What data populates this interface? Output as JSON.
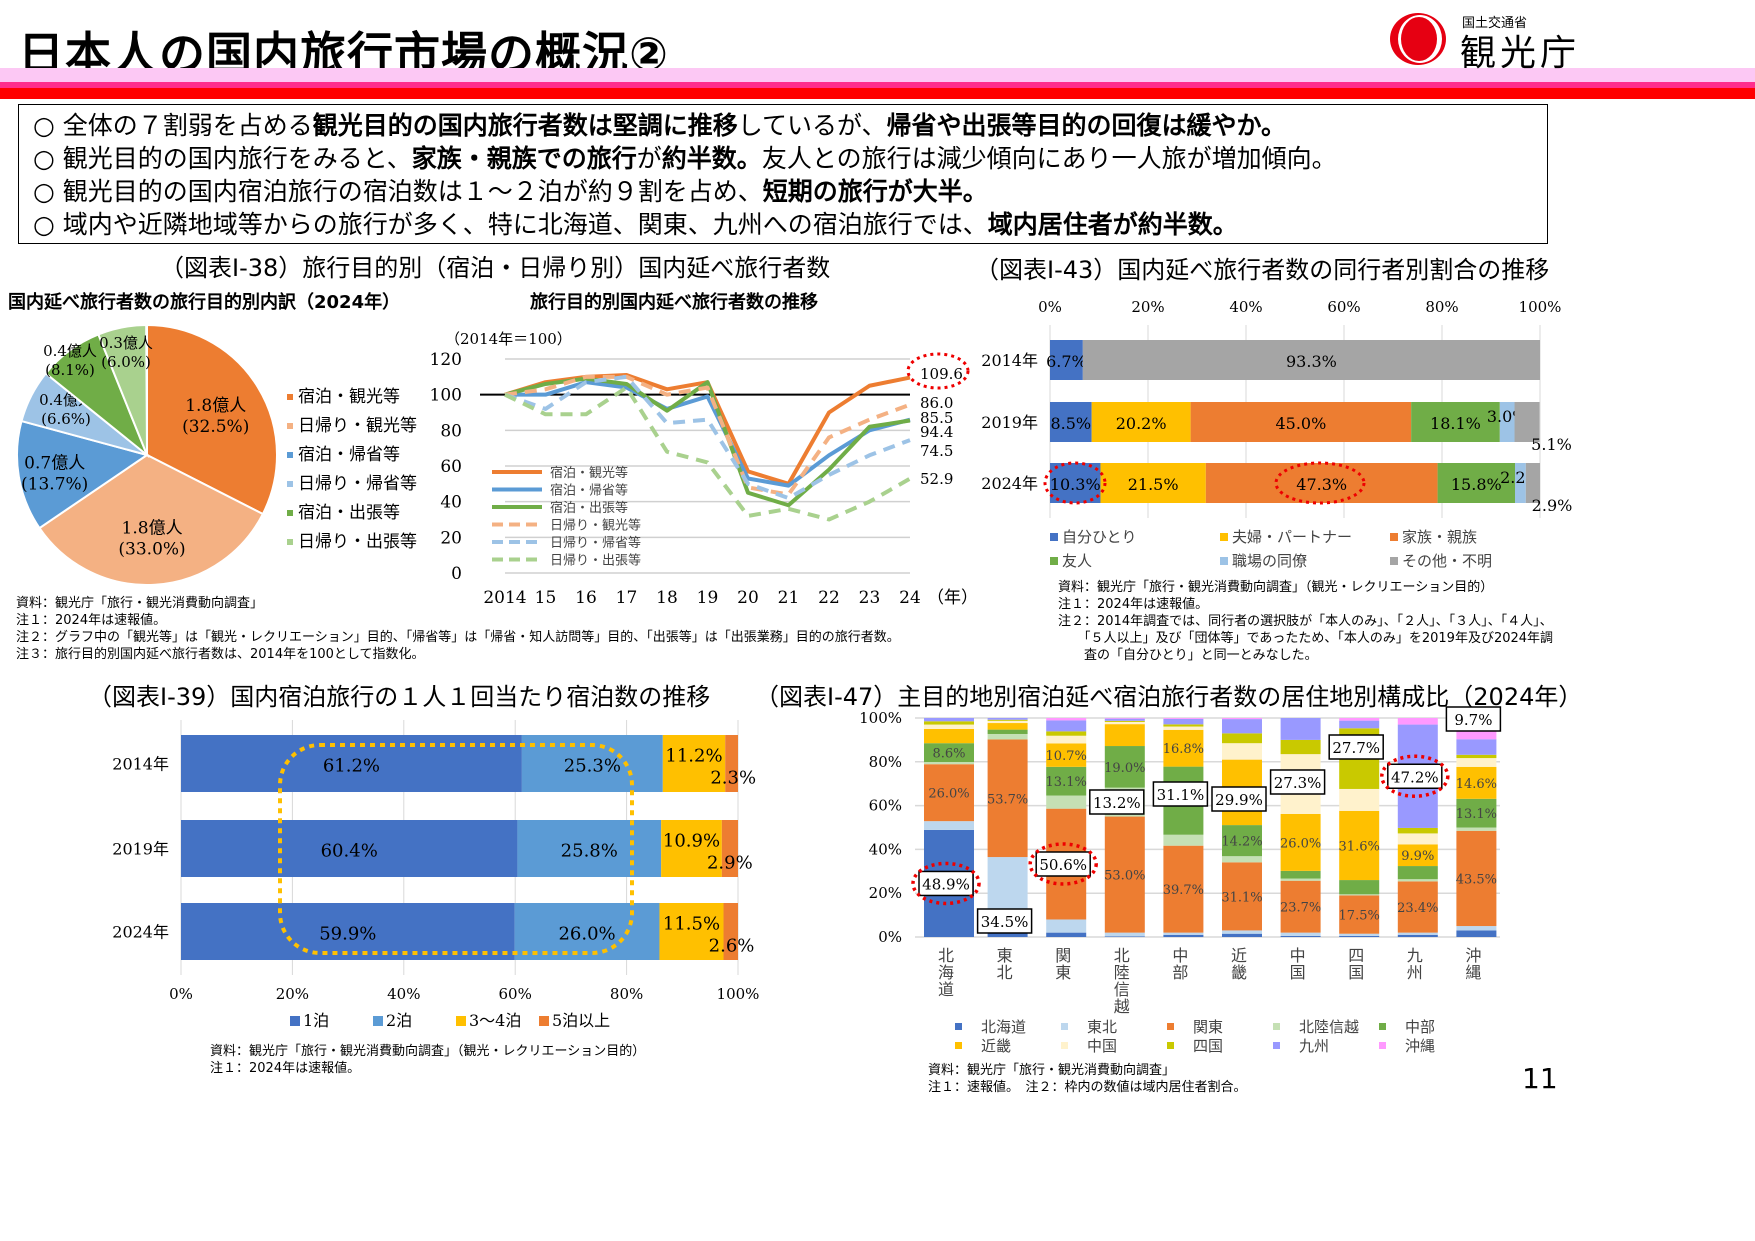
{
  "header": {
    "title": "日本人の国内旅行市場の概況②",
    "logo_text_small": "国土交通省",
    "logo_text_large": "観光庁"
  },
  "summary": [
    [
      {
        "t": "○ 全体の７割弱を占める"
      },
      {
        "t": "観光目的の国内旅行者数は堅調に推移",
        "b": true
      },
      {
        "t": "しているが、"
      },
      {
        "t": "帰省や出張等目的の回復は緩やか。",
        "b": true
      }
    ],
    [
      {
        "t": "○ 観光目的の国内旅行をみると、"
      },
      {
        "t": "家族・親族での旅行",
        "b": true
      },
      {
        "t": "が"
      },
      {
        "t": "約半数。",
        "b": true
      },
      {
        "t": "友人との旅行は減少傾向にあり一人旅が増加傾向。"
      }
    ],
    [
      {
        "t": "○ 観光目的の国内宿泊旅行の宿泊数は１～２泊が約９割を占め、"
      },
      {
        "t": "短期の旅行が大半。",
        "b": true
      }
    ],
    [
      {
        "t": "○ 域内や近隣地域等からの旅行が多く、特に北海道、関東、九州への宿泊旅行では、"
      },
      {
        "t": "域内居住者が約半数。",
        "b": true
      }
    ]
  ],
  "fig38": {
    "title": "（図表Ⅰ-38）旅行目的別（宿泊・日帰り別）国内延べ旅行者数",
    "pie_subtitle": "国内延べ旅行者数の旅行目的別内訳（2024年）",
    "line_subtitle": "旅行目的別国内延べ旅行者数の推移",
    "notes": [
      "資料：観光庁「旅行・観光消費動向調査」",
      "注１：2024年は速報値。",
      "注２：グラフ中の「観光等」は「観光・レクリエーション」目的、「帰省等」は「帰省・知人訪問等」目的、「出張等」は「出張業務」目的の旅行者数。",
      "注３：旅行目的別国内延べ旅行者数は、2014年を100として指数化。"
    ]
  },
  "fig43": {
    "title": "（図表Ⅰ-43）国内延べ旅行者数の同行者別割合の推移",
    "notes": [
      "資料：観光庁「旅行・観光消費動向調査」（観光・レクリエーション目的）",
      "注１：2024年は速報値。",
      "注２：2014年調査では、同行者の選択肢が「本人のみ」、「２人」、「３人」、「４人」、",
      "　　「５人以上」及び「団体等」であったため、「本人のみ」を2019年及び2024年調",
      "　　査の「自分ひとり」と同一とみなした。"
    ]
  },
  "fig39": {
    "title": "（図表Ⅰ-39）国内宿泊旅行の１人１回当たり宿泊数の推移",
    "notes": [
      "資料：観光庁「旅行・観光消費動向調査」（観光・レクリエーション目的）",
      "注１：2024年は速報値。"
    ]
  },
  "fig47": {
    "title": "（図表Ⅰ-47）主目的地別宿泊延べ宿泊旅行者数の居住地別構成比（2024年）",
    "notes": [
      "資料：観光庁「旅行・観光消費動向調査」",
      "注１：速報値。　注２：枠内の数値は域内居住者割合。"
    ]
  },
  "page_number": "11",
  "chart_data": [
    {
      "id": "pie",
      "type": "pie",
      "title": "国内延べ旅行者数の旅行目的別内訳（2024年）",
      "slices": [
        {
          "name": "宿泊・観光等",
          "value": 32.5,
          "label": "1.8億人",
          "pct": "(32.5%)",
          "color": "#ed7d31"
        },
        {
          "name": "日帰り・観光等",
          "value": 33.0,
          "label": "1.8億人",
          "pct": "(33.0%)",
          "color": "#f4b183"
        },
        {
          "name": "宿泊・帰省等",
          "value": 13.7,
          "label": "0.7億人",
          "pct": "(13.7%)",
          "color": "#5b9bd5"
        },
        {
          "name": "日帰り・帰省等",
          "value": 6.6,
          "label": "0.4億人",
          "pct": "(6.6%)",
          "color": "#9dc3e6"
        },
        {
          "name": "宿泊・出張等",
          "value": 8.1,
          "label": "0.4億人",
          "pct": "(8.1%)",
          "color": "#70ad47"
        },
        {
          "name": "日帰り・出張等",
          "value": 6.0,
          "label": "0.3億人",
          "pct": "(6.0%)",
          "color": "#a9d18e"
        }
      ]
    },
    {
      "id": "line",
      "type": "line",
      "title": "旅行目的別国内延べ旅行者数の推移",
      "ylabel": "（2014年＝100）",
      "xunit": "（年）",
      "x": [
        "2014",
        "15",
        "16",
        "17",
        "18",
        "19",
        "20",
        "21",
        "22",
        "23",
        "24"
      ],
      "ylim": [
        0,
        120
      ],
      "yticks": [
        0,
        20,
        40,
        60,
        80,
        100,
        120
      ],
      "reference_line": 100,
      "series": [
        {
          "name": "宿泊・観光等",
          "color": "#ed7d31",
          "dash": false,
          "values": [
            100,
            107,
            110,
            111,
            103,
            107,
            57,
            50,
            90,
            105,
            109.6
          ],
          "end_label": "109.6"
        },
        {
          "name": "宿泊・帰省等",
          "color": "#5b9bd5",
          "dash": false,
          "values": [
            100,
            100,
            107,
            104,
            92,
            99,
            53,
            49,
            66,
            80,
            86.0
          ],
          "end_label": "86.0"
        },
        {
          "name": "宿泊・出張等",
          "color": "#70ad47",
          "dash": false,
          "values": [
            100,
            106,
            109,
            106,
            91,
            107,
            45,
            38,
            58,
            82,
            85.5
          ],
          "end_label": "85.5"
        },
        {
          "name": "日帰り・観光等",
          "color": "#f4b183",
          "dash": true,
          "values": [
            100,
            103,
            110,
            110,
            100,
            104,
            48,
            44,
            76,
            86,
            94.4
          ],
          "end_label": "94.4"
        },
        {
          "name": "日帰り・帰省等",
          "color": "#9dc3e6",
          "dash": true,
          "values": [
            100,
            92,
            107,
            110,
            84,
            86,
            50,
            42,
            55,
            66,
            74.5
          ],
          "end_label": "74.5"
        },
        {
          "name": "日帰り・出張等",
          "color": "#a9d18e",
          "dash": true,
          "values": [
            100,
            89,
            89,
            104,
            68,
            62,
            32,
            36,
            30,
            40,
            52.9
          ],
          "end_label": "52.9"
        }
      ]
    },
    {
      "id": "companion",
      "type": "bar",
      "orientation": "horizontal",
      "stacked": true,
      "categories": [
        "2014年",
        "2019年",
        "2024年"
      ],
      "xticks": [
        "0%",
        "20%",
        "40%",
        "60%",
        "80%",
        "100%"
      ],
      "xlim": [
        0,
        100
      ],
      "series": [
        {
          "name": "自分ひとり",
          "color": "#4472c4",
          "values": [
            6.7,
            8.5,
            10.3
          ]
        },
        {
          "name": "夫婦・パートナー",
          "color": "#ffc000",
          "values": [
            0,
            20.2,
            21.5
          ]
        },
        {
          "name": "家族・親族",
          "color": "#ed7d31",
          "values": [
            0,
            45.0,
            47.3
          ]
        },
        {
          "name": "友人",
          "color": "#70ad47",
          "values": [
            0,
            18.1,
            15.8
          ]
        },
        {
          "name": "職場の同僚",
          "color": "#9dc3e6",
          "values": [
            0,
            3.0,
            2.2
          ]
        },
        {
          "name": "その他・不明",
          "color": "#a5a5a5",
          "values": [
            93.3,
            5.1,
            2.9
          ]
        }
      ],
      "highlighted": [
        "2024年 自分ひとり",
        "2024年 家族・親族"
      ]
    },
    {
      "id": "nights",
      "type": "bar",
      "orientation": "horizontal",
      "stacked": true,
      "categories": [
        "2014年",
        "2019年",
        "2024年"
      ],
      "xticks": [
        "0%",
        "20%",
        "40%",
        "60%",
        "80%",
        "100%"
      ],
      "xlim": [
        0,
        100
      ],
      "series": [
        {
          "name": "1泊",
          "color": "#4472c4",
          "values": [
            61.2,
            60.4,
            59.9
          ]
        },
        {
          "name": "2泊",
          "color": "#5b9bd5",
          "values": [
            25.3,
            25.8,
            26.0
          ]
        },
        {
          "name": "3～4泊",
          "color": "#ffc000",
          "values": [
            11.2,
            10.9,
            11.5
          ]
        },
        {
          "name": "5泊以上",
          "color": "#ed7d31",
          "values": [
            2.3,
            2.9,
            2.6
          ]
        }
      ]
    },
    {
      "id": "residence",
      "type": "bar",
      "stacked": true,
      "categories": [
        "北海道",
        "東北",
        "関東",
        "北陸信越",
        "中部",
        "近畿",
        "中国",
        "四国",
        "九州",
        "沖縄"
      ],
      "yticks": [
        "0%",
        "20%",
        "40%",
        "60%",
        "80%",
        "100%"
      ],
      "ylim": [
        0,
        100
      ],
      "series": [
        {
          "name": "北海道",
          "color": "#4472c4",
          "values": [
            48.9,
            2,
            2,
            0.3,
            1,
            1.5,
            0.5,
            0.5,
            1,
            3
          ]
        },
        {
          "name": "東北",
          "color": "#bdd7ee",
          "values": [
            4,
            34.5,
            6,
            1.7,
            1,
            1.5,
            1.5,
            1,
            1,
            2
          ]
        },
        {
          "name": "関東",
          "color": "#ed7d31",
          "values": [
            26.0,
            53.7,
            50.6,
            53.0,
            39.7,
            31.1,
            23.7,
            17.5,
            23.4,
            43.5
          ]
        },
        {
          "name": "北陸信越",
          "color": "#c5e0b4",
          "values": [
            1,
            2.5,
            6,
            13.2,
            5,
            2.8,
            1,
            0.5,
            1,
            1.5
          ]
        },
        {
          "name": "中部",
          "color": "#70ad47",
          "values": [
            8.6,
            2,
            13.1,
            19.0,
            31.1,
            14.2,
            3.5,
            6.5,
            6,
            13.1
          ]
        },
        {
          "name": "近畿",
          "color": "#ffc000",
          "values": [
            6.5,
            3,
            10.7,
            10,
            16.8,
            29.9,
            26.0,
            31.6,
            9.9,
            14.6
          ]
        },
        {
          "name": "中国",
          "color": "#fff2cc",
          "values": [
            2,
            1,
            3.5,
            1,
            1.5,
            7.5,
            27.3,
            10,
            5,
            4
          ]
        },
        {
          "name": "四国",
          "color": "#c9c900",
          "values": [
            1.5,
            0.5,
            2,
            0.5,
            1,
            4.5,
            6.5,
            27.7,
            2.5,
            1.5
          ]
        },
        {
          "name": "九州",
          "color": "#9999ff",
          "values": [
            1.5,
            0.8,
            5,
            1,
            2.5,
            6.5,
            10,
            3.5,
            47.2,
            7.1
          ]
        },
        {
          "name": "沖縄",
          "color": "#ff99ff",
          "values": [
            0,
            0,
            1.1,
            0.3,
            0.4,
            0.5,
            0,
            1.2,
            3,
            9.7
          ]
        }
      ],
      "printed_labels": [
        [
          "48.9%",
          null,
          "26.0%",
          null,
          "8.6%"
        ],
        [
          null,
          "34.5%",
          "53.7%"
        ],
        [
          null,
          null,
          "50.6%",
          null,
          "13.1%",
          "10.7%"
        ],
        [
          null,
          null,
          "53.0%",
          "13.2%",
          "19.0%"
        ],
        [
          null,
          null,
          "39.7%",
          null,
          "31.1%",
          "16.8%"
        ],
        [
          null,
          null,
          "31.1%",
          null,
          "14.2%",
          "29.9%"
        ],
        [
          null,
          null,
          "23.7%",
          null,
          null,
          "26.0%",
          "27.3%"
        ],
        [
          null,
          null,
          "17.5%",
          null,
          null,
          "31.6%",
          null,
          "27.7%"
        ],
        [
          null,
          null,
          "23.4%",
          null,
          null,
          "9.9%",
          null,
          null,
          "47.2%"
        ],
        [
          null,
          null,
          "43.5%",
          null,
          "13.1%",
          "14.6%",
          null,
          null,
          null,
          "9.7%"
        ]
      ],
      "highlighted": [
        "北海道",
        "関東",
        "九州"
      ]
    }
  ]
}
